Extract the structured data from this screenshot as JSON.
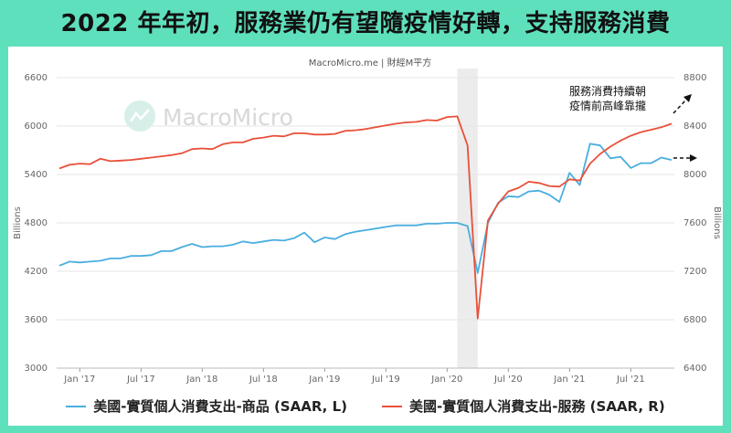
{
  "header": {
    "title": "2022 年年初，服務業仍有望隨疫情好轉，支持服務消費"
  },
  "source": "MacroMicro.me | 財經M平方",
  "watermark": "MacroMicro",
  "annotation": {
    "line1": "服務消費持續朝",
    "line2": "疫情前高峰靠攏"
  },
  "colors": {
    "goods": "#4aaedf",
    "services": "#e8503a",
    "recession_band": "#ececec",
    "title_bg": "#5fe0bd"
  },
  "chart_data": {
    "type": "line",
    "x_tick_labels": [
      "Jan '17",
      "Jul '17",
      "Jan '18",
      "Jul '18",
      "Jan '19",
      "Jul '19",
      "Jan '20",
      "Jul '20",
      "Jan '21",
      "Jul '21"
    ],
    "x_start": "2016-11",
    "left_axis": {
      "label": "Billions",
      "range": [
        3000,
        6600
      ],
      "ticks": [
        3000,
        3600,
        4200,
        4800,
        5400,
        6000,
        6600
      ]
    },
    "right_axis": {
      "label": "Billions",
      "range": [
        6400,
        8800
      ],
      "ticks": [
        6400,
        6800,
        7200,
        7600,
        8000,
        8400,
        8800
      ]
    },
    "shaded_range": [
      "2020-02",
      "2020-04"
    ],
    "series": [
      {
        "name": "美國-實質個人消費支出-商品 (SAAR, L)",
        "axis": "left",
        "values": [
          4270,
          4320,
          4310,
          4320,
          4330,
          4360,
          4360,
          4390,
          4390,
          4400,
          4450,
          4450,
          4500,
          4540,
          4500,
          4510,
          4510,
          4530,
          4570,
          4550,
          4570,
          4590,
          4580,
          4610,
          4680,
          4560,
          4620,
          4600,
          4660,
          4690,
          4710,
          4730,
          4750,
          4770,
          4770,
          4770,
          4790,
          4790,
          4800,
          4800,
          4760,
          4180,
          4800,
          5050,
          5130,
          5120,
          5190,
          5200,
          5150,
          5060,
          5420,
          5270,
          5780,
          5760,
          5600,
          5620,
          5480,
          5540,
          5540,
          5610,
          5580
        ]
      },
      {
        "name": "美國-實質個人消費支出-服務 (SAAR, R)",
        "axis": "right",
        "values": [
          8050,
          8080,
          8090,
          8085,
          8130,
          8110,
          8115,
          8120,
          8130,
          8140,
          8150,
          8160,
          8175,
          8210,
          8215,
          8210,
          8250,
          8265,
          8265,
          8295,
          8305,
          8320,
          8315,
          8340,
          8340,
          8330,
          8330,
          8335,
          8360,
          8365,
          8375,
          8390,
          8405,
          8420,
          8430,
          8435,
          8450,
          8445,
          8475,
          8480,
          8240,
          6810,
          7620,
          7760,
          7860,
          7890,
          7940,
          7930,
          7905,
          7900,
          7960,
          7950,
          8090,
          8170,
          8230,
          8280,
          8320,
          8350,
          8370,
          8390,
          8420
        ]
      }
    ]
  }
}
